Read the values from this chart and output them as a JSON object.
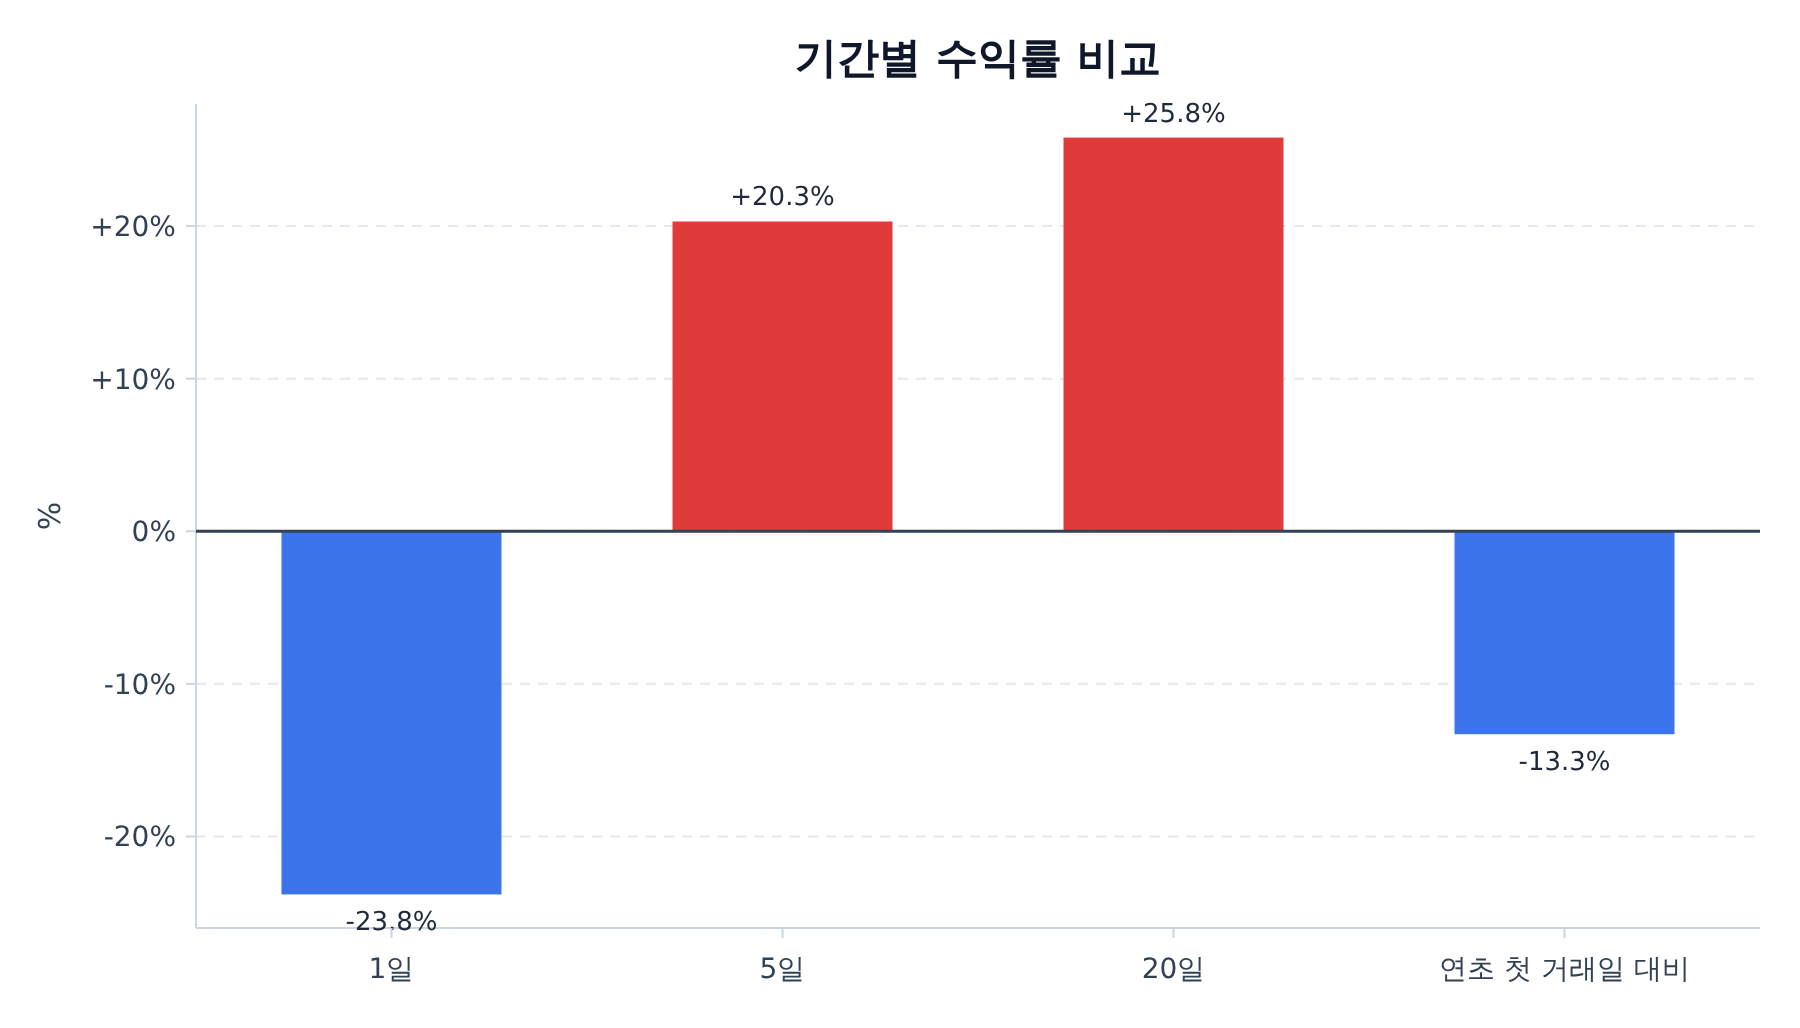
{
  "chart_data": {
    "type": "bar",
    "title": "기간별 수익률 비교",
    "ylabel": "%",
    "categories": [
      "1일",
      "5일",
      "20일",
      "연초 첫 거래일 대비"
    ],
    "values": [
      -23.8,
      20.3,
      25.8,
      -13.3
    ],
    "colors": [
      "#3b74ea",
      "#e03b3b",
      "#e03b3b",
      "#3b74ea"
    ],
    "value_labels": [
      "-23.8%",
      "+20.3%",
      "+25.8%",
      "-13.3%"
    ],
    "ylim": [
      -26,
      28
    ],
    "yticks": [
      {
        "value": -20,
        "label": "-20%"
      },
      {
        "value": -10,
        "label": "-10%"
      },
      {
        "value": 0,
        "label": "0%"
      },
      {
        "value": 10,
        "label": "+10%"
      },
      {
        "value": 20,
        "label": "+20%"
      }
    ],
    "ref_lines": [
      {
        "axis": "y",
        "value": 0,
        "color": "#334155"
      }
    ],
    "grid": "y"
  }
}
